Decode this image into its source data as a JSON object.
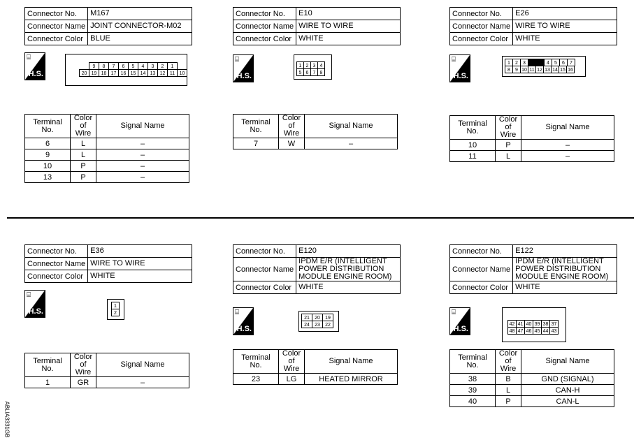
{
  "labels": {
    "connector_no": "Connector No.",
    "connector_name": "Connector Name",
    "connector_color": "Connector Color",
    "terminal_no": "Terminal No.",
    "color_of_wire": "Color of Wire",
    "signal_name": "Signal Name",
    "hs": "H.S."
  },
  "connectors": [
    {
      "no": "M167",
      "name": "JOINT CONNECTOR-M02",
      "color": "BLUE",
      "pins": [
        [
          "",
          "9",
          "8",
          "7",
          "6",
          "5",
          "4",
          "3",
          "2",
          "1",
          ""
        ],
        [
          "20",
          "19",
          "18",
          "17",
          "16",
          "15",
          "14",
          "13",
          "12",
          "11",
          "10"
        ]
      ],
      "terminals": [
        [
          "6",
          "L",
          "–"
        ],
        [
          "9",
          "L",
          "–"
        ],
        [
          "10",
          "P",
          "–"
        ],
        [
          "13",
          "P",
          "–"
        ]
      ]
    },
    {
      "no": "E10",
      "name": "WIRE TO WIRE",
      "color": "WHITE",
      "pins": [
        [
          "1",
          "2",
          "3",
          "4"
        ],
        [
          "5",
          "6",
          "7",
          "8"
        ]
      ],
      "terminals": [
        [
          "7",
          "W",
          "–"
        ]
      ]
    },
    {
      "no": "E26",
      "name": "WIRE TO WIRE",
      "color": "WHITE",
      "pins": [
        [
          "1",
          "2",
          "3",
          "#",
          "4",
          "5",
          "6",
          "7"
        ],
        [
          "8",
          "9",
          "10",
          "11",
          "12",
          "13",
          "14",
          "15",
          "16"
        ]
      ],
      "terminals": [
        [
          "10",
          "P",
          "–"
        ],
        [
          "11",
          "L",
          "–"
        ]
      ]
    },
    {
      "no": "E36",
      "name": "WIRE TO WIRE",
      "color": "WHITE",
      "pins": [
        [
          "1"
        ],
        [
          "2"
        ]
      ],
      "terminals": [
        [
          "1",
          "GR",
          "–"
        ]
      ]
    },
    {
      "no": "E120",
      "name": "IPDM E/R (INTELLIGENT POWER DISTRIBUTION MODULE ENGINE ROOM)",
      "color": "WHITE",
      "pins": [
        [
          "21",
          "20",
          "19"
        ],
        [
          "24",
          "23",
          "22"
        ]
      ],
      "terminals": [
        [
          "23",
          "LG",
          "HEATED MIRROR"
        ]
      ]
    },
    {
      "no": "E122",
      "name": "IPDM E/R (INTELLIGENT POWER DISTRIBUTION MODULE ENGINE ROOM)",
      "color": "WHITE",
      "pins": [
        [
          "42",
          "41",
          "40",
          "39",
          "38",
          "37"
        ],
        [
          "48",
          "47",
          "46",
          "45",
          "44",
          "43"
        ]
      ],
      "terminals": [
        [
          "38",
          "B",
          "GND (SIGNAL)"
        ],
        [
          "39",
          "L",
          "CAN-H"
        ],
        [
          "40",
          "P",
          "CAN-L"
        ]
      ]
    }
  ],
  "figure_code": "ABLIA3331GB"
}
